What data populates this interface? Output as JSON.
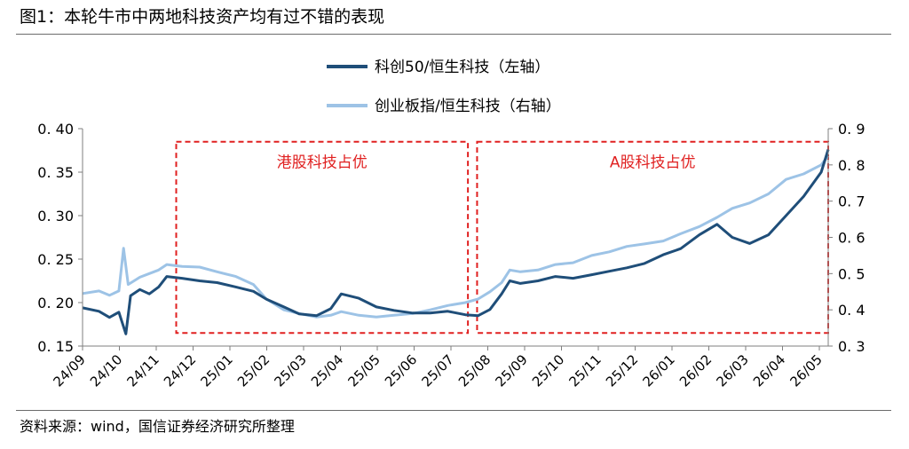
{
  "figure_title": "图1：本轮牛市中两地科技资产均有过不错的表现",
  "source": "资料来源：wind，国信证券经济研究所整理",
  "colors": {
    "series_left": "#1f4e79",
    "series_right": "#9dc3e6",
    "box": "#e02020",
    "axis": "#7f7f7f"
  },
  "chart_data": {
    "type": "line",
    "title": "",
    "legend_position": "top-center",
    "grid": false,
    "x_ticks": [
      "24/09",
      "24/10",
      "24/11",
      "24/12",
      "25/01",
      "25/02",
      "25/03",
      "25/04",
      "25/05",
      "25/06",
      "25/07",
      "25/08",
      "25/09",
      "25/10",
      "25/11",
      "25/12",
      "26/01",
      "26/02",
      "26/03",
      "26/04",
      "26/05"
    ],
    "y_left": {
      "ticks": [
        "0.15",
        "0.20",
        "0.25",
        "0.30",
        "0.35",
        "0.40"
      ],
      "ylim": [
        0.15,
        0.4
      ]
    },
    "y_right": {
      "ticks": [
        "0.3",
        "0.4",
        "0.5",
        "0.6",
        "0.7",
        "0.8",
        "0.9"
      ],
      "ylim": [
        0.3,
        0.9
      ]
    },
    "x_range": [
      "2024-09-01",
      "2026-05-31"
    ],
    "series": [
      {
        "name": "科创50/恒生科技（左轴）",
        "axis": "left",
        "points": [
          [
            "2024-09-01",
            0.194
          ],
          [
            "2024-09-15",
            0.19
          ],
          [
            "2024-09-24",
            0.183
          ],
          [
            "2024-10-02",
            0.189
          ],
          [
            "2024-10-08",
            0.164
          ],
          [
            "2024-10-12",
            0.208
          ],
          [
            "2024-10-20",
            0.215
          ],
          [
            "2024-10-28",
            0.21
          ],
          [
            "2024-11-05",
            0.218
          ],
          [
            "2024-11-12",
            0.23
          ],
          [
            "2024-11-25",
            0.228
          ],
          [
            "2024-12-10",
            0.225
          ],
          [
            "2024-12-25",
            0.223
          ],
          [
            "2025-01-10",
            0.218
          ],
          [
            "2025-01-25",
            0.213
          ],
          [
            "2025-02-05",
            0.204
          ],
          [
            "2025-02-20",
            0.195
          ],
          [
            "2025-03-05",
            0.187
          ],
          [
            "2025-03-20",
            0.185
          ],
          [
            "2025-04-01",
            0.193
          ],
          [
            "2025-04-10",
            0.21
          ],
          [
            "2025-04-25",
            0.205
          ],
          [
            "2025-05-10",
            0.195
          ],
          [
            "2025-05-25",
            0.191
          ],
          [
            "2025-06-10",
            0.188
          ],
          [
            "2025-06-25",
            0.188
          ],
          [
            "2025-07-10",
            0.19
          ],
          [
            "2025-07-25",
            0.186
          ],
          [
            "2025-08-05",
            0.185
          ],
          [
            "2025-08-15",
            0.192
          ],
          [
            "2025-08-25",
            0.21
          ],
          [
            "2025-09-01",
            0.225
          ],
          [
            "2025-09-10",
            0.222
          ],
          [
            "2025-09-25",
            0.225
          ],
          [
            "2025-10-10",
            0.23
          ],
          [
            "2025-10-25",
            0.228
          ],
          [
            "2025-11-10",
            0.232
          ],
          [
            "2025-11-25",
            0.236
          ],
          [
            "2025-12-10",
            0.24
          ],
          [
            "2025-12-25",
            0.245
          ],
          [
            "2026-01-10",
            0.255
          ],
          [
            "2026-01-25",
            0.262
          ],
          [
            "2026-02-10",
            0.278
          ],
          [
            "2026-02-25",
            0.29
          ],
          [
            "2026-03-10",
            0.275
          ],
          [
            "2026-03-25",
            0.268
          ],
          [
            "2026-04-10",
            0.278
          ],
          [
            "2026-04-25",
            0.3
          ],
          [
            "2026-05-10",
            0.322
          ],
          [
            "2026-05-25",
            0.35
          ],
          [
            "2026-05-31",
            0.376
          ]
        ]
      },
      {
        "name": "创业板指/恒生科技（右轴）",
        "axis": "right",
        "points": [
          [
            "2024-09-01",
            0.445
          ],
          [
            "2024-09-15",
            0.452
          ],
          [
            "2024-09-24",
            0.44
          ],
          [
            "2024-10-02",
            0.452
          ],
          [
            "2024-10-06",
            0.57
          ],
          [
            "2024-10-10",
            0.47
          ],
          [
            "2024-10-20",
            0.49
          ],
          [
            "2024-10-28",
            0.5
          ],
          [
            "2024-11-05",
            0.51
          ],
          [
            "2024-11-12",
            0.525
          ],
          [
            "2024-11-25",
            0.52
          ],
          [
            "2024-12-10",
            0.518
          ],
          [
            "2024-12-25",
            0.505
          ],
          [
            "2025-01-10",
            0.492
          ],
          [
            "2025-01-25",
            0.47
          ],
          [
            "2025-02-05",
            0.43
          ],
          [
            "2025-02-20",
            0.4
          ],
          [
            "2025-03-05",
            0.39
          ],
          [
            "2025-03-20",
            0.38
          ],
          [
            "2025-04-01",
            0.385
          ],
          [
            "2025-04-10",
            0.395
          ],
          [
            "2025-04-25",
            0.385
          ],
          [
            "2025-05-10",
            0.38
          ],
          [
            "2025-05-25",
            0.385
          ],
          [
            "2025-06-10",
            0.39
          ],
          [
            "2025-06-25",
            0.4
          ],
          [
            "2025-07-10",
            0.412
          ],
          [
            "2025-07-25",
            0.42
          ],
          [
            "2025-08-05",
            0.43
          ],
          [
            "2025-08-15",
            0.45
          ],
          [
            "2025-08-25",
            0.475
          ],
          [
            "2025-09-01",
            0.51
          ],
          [
            "2025-09-10",
            0.505
          ],
          [
            "2025-09-25",
            0.51
          ],
          [
            "2025-10-10",
            0.525
          ],
          [
            "2025-10-25",
            0.53
          ],
          [
            "2025-11-10",
            0.55
          ],
          [
            "2025-11-25",
            0.56
          ],
          [
            "2025-12-10",
            0.575
          ],
          [
            "2025-12-25",
            0.582
          ],
          [
            "2026-01-10",
            0.59
          ],
          [
            "2026-01-25",
            0.61
          ],
          [
            "2026-02-10",
            0.63
          ],
          [
            "2026-02-25",
            0.655
          ],
          [
            "2026-03-10",
            0.68
          ],
          [
            "2026-03-25",
            0.695
          ],
          [
            "2026-04-10",
            0.72
          ],
          [
            "2026-04-25",
            0.76
          ],
          [
            "2026-05-10",
            0.775
          ],
          [
            "2026-05-25",
            0.8
          ],
          [
            "2026-05-31",
            0.825
          ]
        ]
      }
    ],
    "annotations": [
      {
        "label": "港股科技占优",
        "x_start": "2024-11-20",
        "x_end": "2025-07-31",
        "y_range_left": [
          0.164,
          0.385
        ]
      },
      {
        "label": "A股科技占优",
        "x_start": "2025-08-01",
        "x_end": "2026-05-31",
        "y_range_left": [
          0.164,
          0.385
        ]
      }
    ]
  }
}
